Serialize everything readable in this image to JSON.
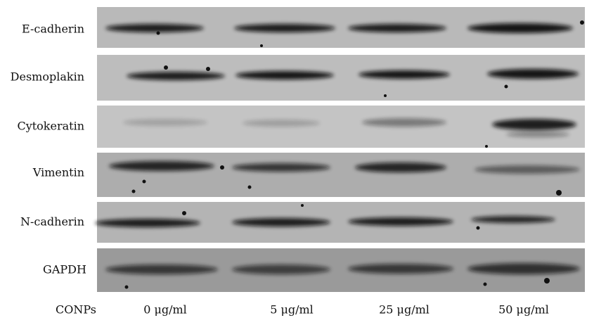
{
  "rows": [
    "E-cadherin",
    "Desmoplakin",
    "Cytokeratin",
    "Vimentin",
    "N-cadherin",
    "GAPDH"
  ],
  "lane_axis_label": "CONPs",
  "lanes": [
    "0 μg/ml",
    "5 μg/ml",
    "25 μg/ml",
    "50 μg/ml"
  ]
}
